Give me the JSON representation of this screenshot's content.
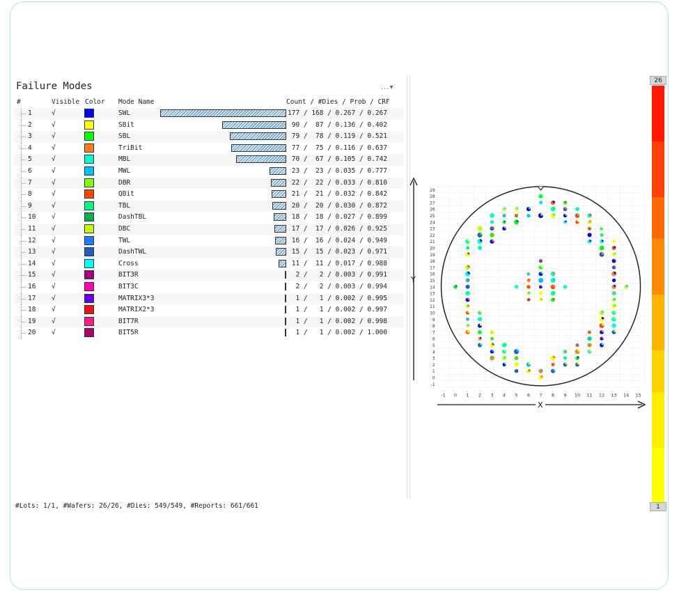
{
  "panel": {
    "title": "Failure Modes",
    "menu": "...▾",
    "columns": {
      "index": "#",
      "visible": "Visible",
      "color": "Color",
      "mode_name": "Mode Name",
      "stats": "Count / #Dies / Prob / CRF"
    }
  },
  "rows": [
    {
      "idx": "1",
      "visible": "√",
      "color": "#0000ff",
      "name": "SWL",
      "count": 177,
      "stats": "177 / 168 / 0.267 / 0.267"
    },
    {
      "idx": "2",
      "visible": "√",
      "color": "#ffff00",
      "name": "SBit",
      "count": 90,
      "stats": " 90 /  87 / 0.136 / 0.402"
    },
    {
      "idx": "3",
      "visible": "√",
      "color": "#00ff00",
      "name": "SBL",
      "count": 79,
      "stats": " 79 /  78 / 0.119 / 0.521"
    },
    {
      "idx": "4",
      "visible": "√",
      "color": "#ff7f1f",
      "name": "TriBit",
      "count": 77,
      "stats": " 77 /  75 / 0.116 / 0.637"
    },
    {
      "idx": "5",
      "visible": "√",
      "color": "#00ffcc",
      "name": "MBL",
      "count": 70,
      "stats": " 70 /  67 / 0.105 / 0.742"
    },
    {
      "idx": "6",
      "visible": "√",
      "color": "#00bfff",
      "name": "MWL",
      "count": 23,
      "stats": " 23 /  23 / 0.035 / 0.777"
    },
    {
      "idx": "7",
      "visible": "√",
      "color": "#7fff00",
      "name": "DBR",
      "count": 22,
      "stats": " 22 /  22 / 0.033 / 0.810"
    },
    {
      "idx": "8",
      "visible": "√",
      "color": "#ff4500",
      "name": "QBit",
      "count": 21,
      "stats": " 21 /  21 / 0.032 / 0.842"
    },
    {
      "idx": "9",
      "visible": "√",
      "color": "#00ff7f",
      "name": "TBL",
      "count": 20,
      "stats": " 20 /  20 / 0.030 / 0.872"
    },
    {
      "idx": "10",
      "visible": "√",
      "color": "#00b050",
      "name": "DashTBL",
      "count": 18,
      "stats": " 18 /  18 / 0.027 / 0.899"
    },
    {
      "idx": "11",
      "visible": "√",
      "color": "#bfff00",
      "name": "DBC",
      "count": 17,
      "stats": " 17 /  17 / 0.026 / 0.925"
    },
    {
      "idx": "12",
      "visible": "√",
      "color": "#1e7fff",
      "name": "TWL",
      "count": 16,
      "stats": " 16 /  16 / 0.024 / 0.949"
    },
    {
      "idx": "13",
      "visible": "√",
      "color": "#1f5fbf",
      "name": "DashTWL",
      "count": 15,
      "stats": " 15 /  15 / 0.023 / 0.971"
    },
    {
      "idx": "14",
      "visible": "√",
      "color": "#00ffff",
      "name": "Cross",
      "count": 11,
      "stats": " 11 /  11 / 0.017 / 0.988"
    },
    {
      "idx": "15",
      "visible": "√",
      "color": "#9f007f",
      "name": "BIT3R",
      "count": 2,
      "stats": "  2 /   2 / 0.003 / 0.991"
    },
    {
      "idx": "16",
      "visible": "√",
      "color": "#ff00bf",
      "name": "BIT3C",
      "count": 2,
      "stats": "  2 /   2 / 0.003 / 0.994"
    },
    {
      "idx": "17",
      "visible": "√",
      "color": "#5f00ff",
      "name": "MATRIX3*3",
      "count": 1,
      "stats": "  1 /   1 / 0.002 / 0.995"
    },
    {
      "idx": "18",
      "visible": "√",
      "color": "#ef1010",
      "name": "MATRIX2*3",
      "count": 1,
      "stats": "  1 /   1 / 0.002 / 0.997"
    },
    {
      "idx": "19",
      "visible": "√",
      "color": "#ff1f7f",
      "name": "BIT7R",
      "count": 1,
      "stats": "  1 /   1 / 0.002 / 0.998"
    },
    {
      "idx": "20",
      "visible": "√",
      "color": "#af006f",
      "name": "BIT5R",
      "count": 1,
      "stats": "  1 /   1 / 0.002 / 1.000"
    }
  ],
  "footer": "#Lots: 1/1, #Wafers: 26/26, #Dies: 549/549, #Reports: 661/661",
  "wafer_map": {
    "x_label": "X",
    "y_label": "Y",
    "x_ticks": [
      "-1",
      "0",
      "1",
      "2",
      "3",
      "4",
      "5",
      "6",
      "7",
      "8",
      "9",
      "10",
      "11",
      "12",
      "13",
      "14",
      "15"
    ],
    "y_ticks": [
      "-1",
      "0",
      "1",
      "2",
      "3",
      "4",
      "5",
      "6",
      "7",
      "8",
      "9",
      "10",
      "11",
      "12",
      "13",
      "14",
      "15",
      "16",
      "17",
      "18",
      "19",
      "20",
      "21",
      "22",
      "23",
      "24",
      "25",
      "26",
      "27",
      "28",
      "29"
    ]
  },
  "color_scale": {
    "max": "26",
    "min": "1",
    "colors": [
      "#ff1a00",
      "#ff4000",
      "#ff6a00",
      "#ff8c00",
      "#ffb300",
      "#ffd200",
      "#ffec00",
      "#ffff00"
    ]
  }
}
